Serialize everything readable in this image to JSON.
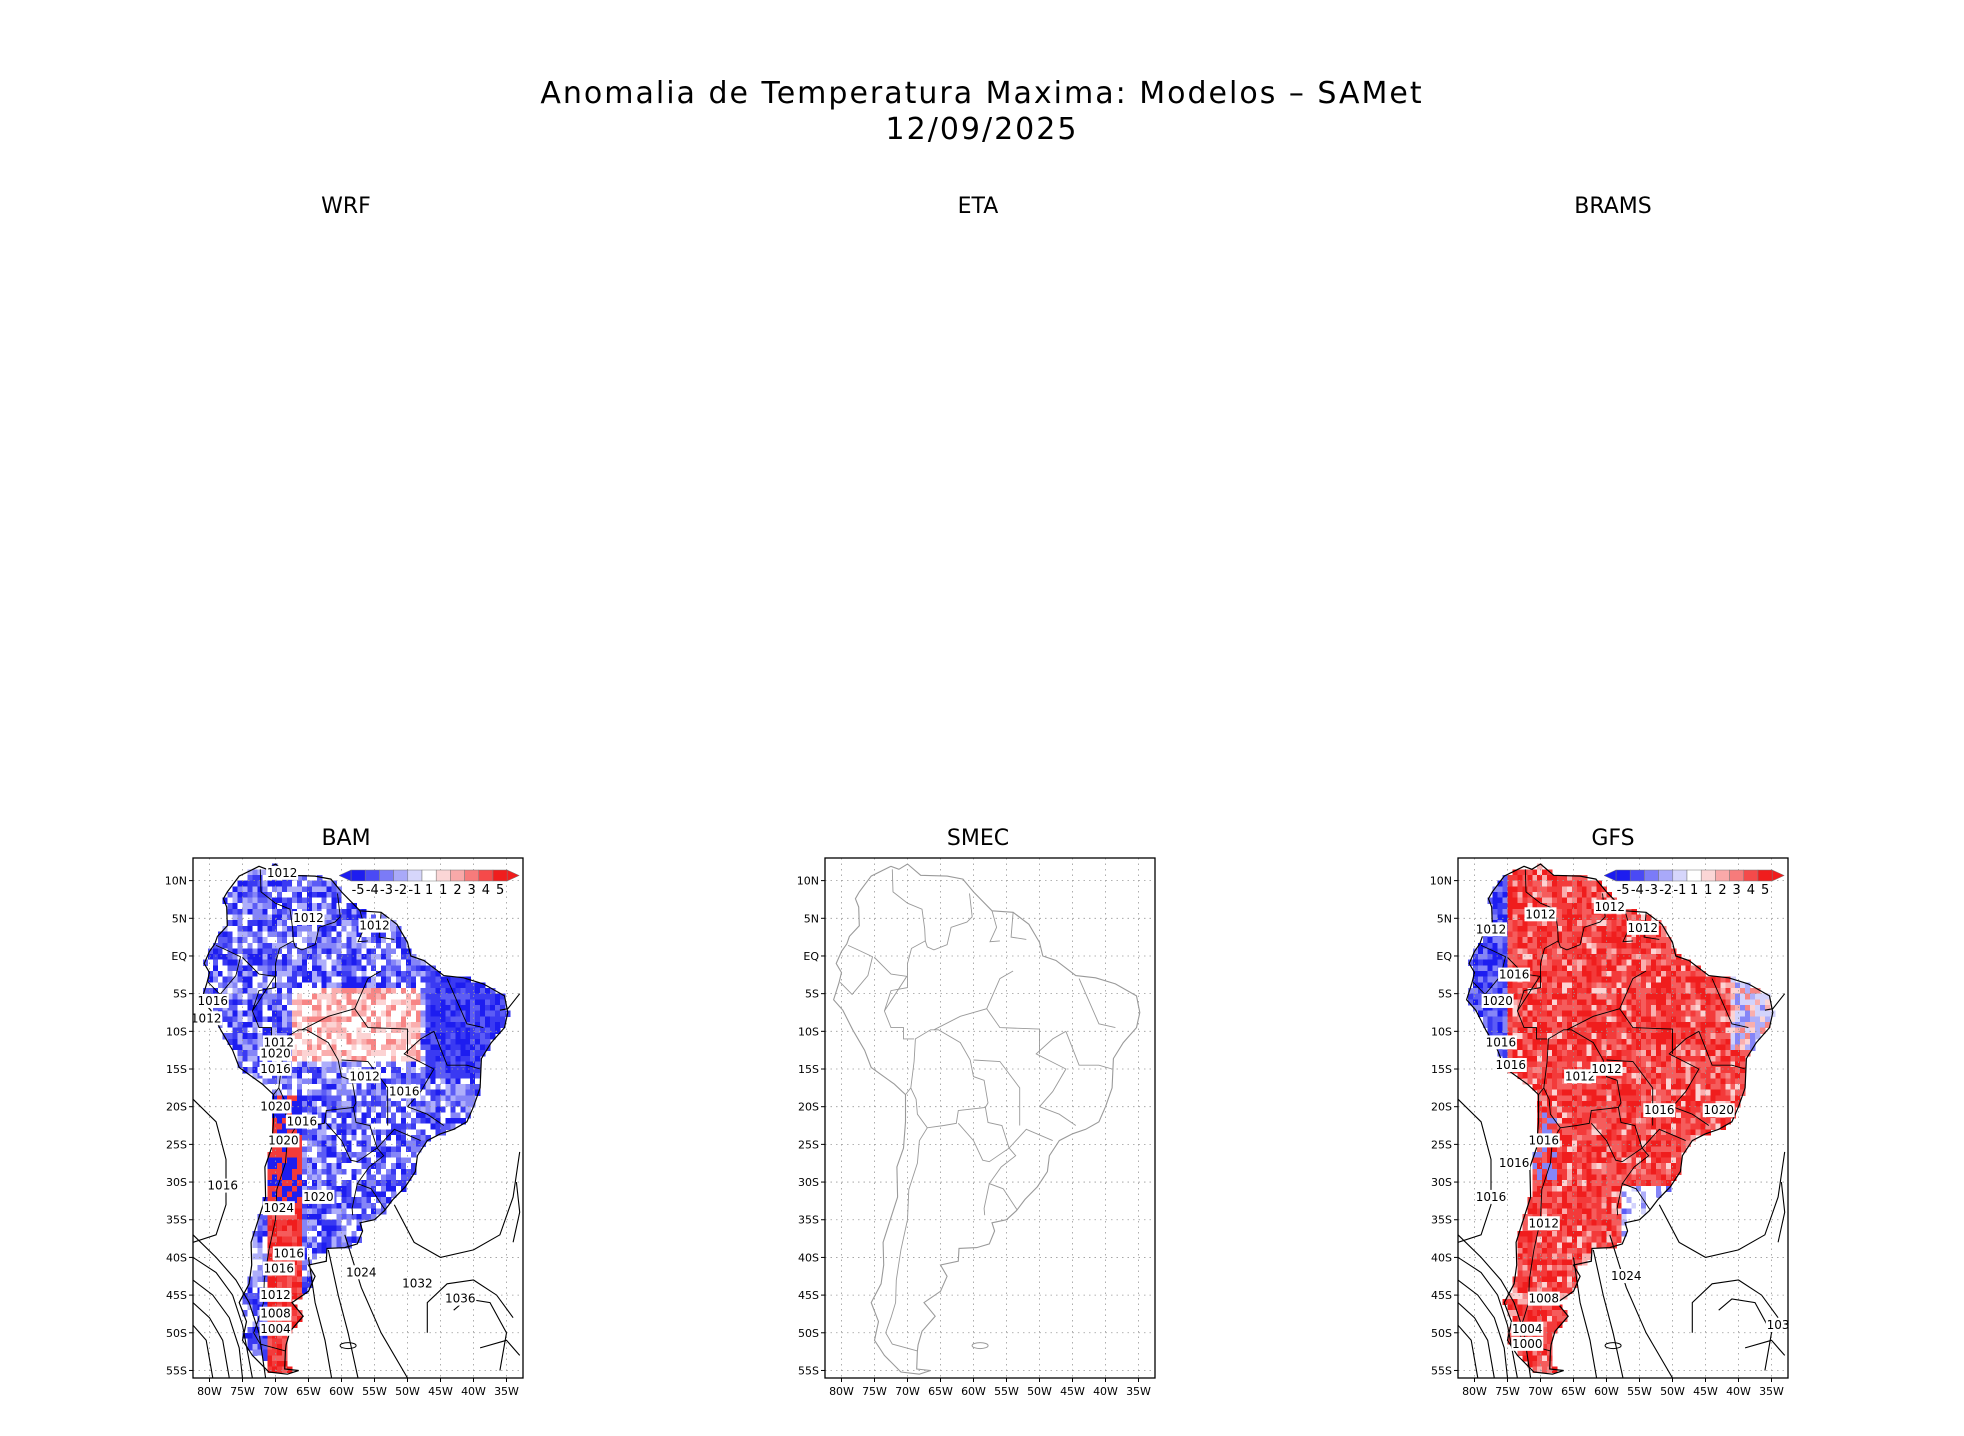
{
  "title": {
    "line1": "Anomalia de Temperatura Maxima: Modelos – SAMet",
    "line2": "12/09/2025"
  },
  "panels": [
    {
      "id": "wrf",
      "label": "WRF",
      "has_map": false
    },
    {
      "id": "eta",
      "label": "ETA",
      "has_map": false
    },
    {
      "id": "brams",
      "label": "BRAMS",
      "has_map": false
    },
    {
      "id": "bam",
      "label": "BAM",
      "has_map": true,
      "has_colorbar": true,
      "anomaly": "mixed-cold",
      "isobar_labels": [
        "1012",
        "1012",
        "1012",
        "1016",
        "1012",
        "1012",
        "1020",
        "1016",
        "1012",
        "1016",
        "1020",
        "1016",
        "1020",
        "1020",
        "1016",
        "1016",
        "1024",
        "1016",
        "1012",
        "1008",
        "1004",
        "1024",
        "1032",
        "1036"
      ]
    },
    {
      "id": "smec",
      "label": "SMEC",
      "has_map": true,
      "has_colorbar": false,
      "anomaly": "none",
      "isobar_labels": []
    },
    {
      "id": "gfs",
      "label": "GFS",
      "has_map": true,
      "has_colorbar": true,
      "anomaly": "warm",
      "isobar_labels": [
        "1016",
        "1012",
        "1012",
        "1012",
        "1012",
        "1020",
        "1016",
        "1012",
        "1016",
        "1016",
        "1012",
        "1016",
        "1020",
        "1016",
        "1016",
        "1012",
        "1024",
        "1008",
        "1004",
        "1000",
        "103"
      ]
    }
  ],
  "axes": {
    "lat_ticks": [
      "10N",
      "5N",
      "EQ",
      "5S",
      "10S",
      "15S",
      "20S",
      "25S",
      "30S",
      "35S",
      "40S",
      "45S",
      "50S",
      "55S"
    ],
    "lon_ticks": [
      "80W",
      "75W",
      "70W",
      "65W",
      "60W",
      "55W",
      "50W",
      "45W",
      "40W",
      "35W"
    ]
  },
  "colorbar": {
    "labels": [
      "-5",
      "-4",
      "-3",
      "-2",
      "-1",
      "1",
      "1",
      "2",
      "3",
      "4",
      "5"
    ],
    "colors": [
      "#1d1df0",
      "#4a4af5",
      "#7b7bf7",
      "#a9a9f9",
      "#d6d6fb",
      "#ffffff",
      "#fbd6d6",
      "#f9a9a9",
      "#f77b7b",
      "#f54a4a",
      "#f01d1d"
    ]
  },
  "colors": {
    "cold": "#2a3be0",
    "warm": "#ee2020",
    "coast": "#000000",
    "coast_smec": "#9a9a9a"
  }
}
